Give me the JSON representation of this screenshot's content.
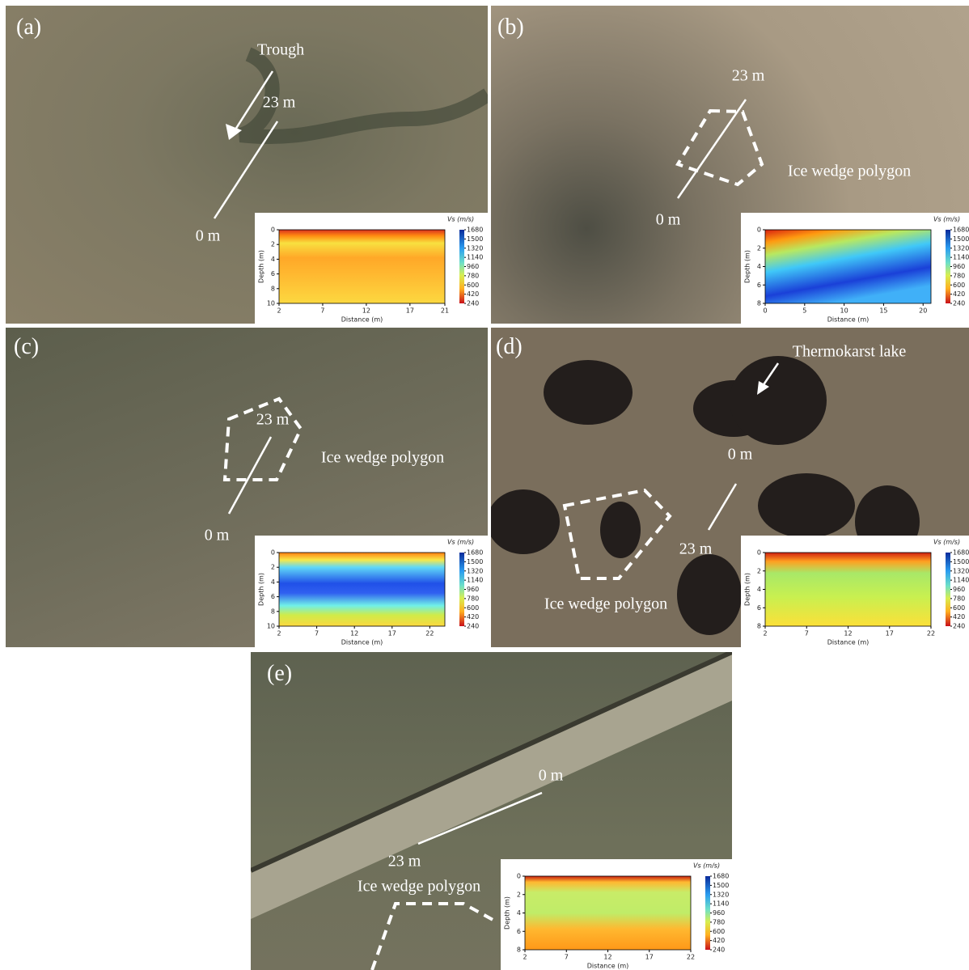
{
  "panels": [
    {
      "label": "(a)",
      "annotations": [
        "Trough",
        "23 m",
        "0 m"
      ],
      "inset": {
        "colorbar_title": "Vs (m/s)",
        "colorbar_ticks": [
          1680,
          1500,
          1320,
          1140,
          960,
          780,
          600,
          420,
          240
        ],
        "xlabel": "Distance (m)",
        "ylabel": "Depth (m)",
        "xlim": [
          2,
          21
        ],
        "xticks": [
          2,
          7,
          12,
          17,
          21
        ],
        "ylim": [
          0,
          10
        ],
        "yticks": [
          0,
          2,
          4,
          6,
          8,
          10
        ]
      }
    },
    {
      "label": "(b)",
      "annotations": [
        "23 m",
        "Ice wedge polygon",
        "0 m"
      ],
      "inset": {
        "colorbar_title": "Vs (m/s)",
        "colorbar_ticks": [
          1680,
          1500,
          1320,
          1140,
          960,
          780,
          600,
          420,
          240
        ],
        "xlabel": "Distance (m)",
        "ylabel": "Depth (m)",
        "xlim": [
          0,
          21
        ],
        "xticks": [
          0,
          5,
          10,
          15,
          20
        ],
        "ylim": [
          0,
          8
        ],
        "yticks": [
          0,
          2,
          4,
          6,
          8
        ]
      }
    },
    {
      "label": "(c)",
      "annotations": [
        "23 m",
        "Ice wedge polygon",
        "0 m"
      ],
      "inset": {
        "colorbar_title": "Vs (m/s)",
        "colorbar_ticks": [
          1680,
          1500,
          1320,
          1140,
          960,
          780,
          600,
          420,
          240
        ],
        "xlabel": "Distance (m)",
        "ylabel": "Depth (m)",
        "xlim": [
          2,
          24
        ],
        "xticks": [
          2,
          7,
          12,
          17,
          22
        ],
        "ylim": [
          0,
          10
        ],
        "yticks": [
          0,
          2,
          4,
          6,
          8,
          10
        ]
      }
    },
    {
      "label": "(d)",
      "annotations": [
        "Thermokarst lake",
        "0 m",
        "23 m",
        "Ice wedge polygon"
      ],
      "inset": {
        "colorbar_title": "Vs (m/s)",
        "colorbar_ticks": [
          1680,
          1500,
          1320,
          1140,
          960,
          780,
          600,
          420,
          240
        ],
        "xlabel": "Distance (m)",
        "ylabel": "Depth (m)",
        "xlim": [
          2,
          22
        ],
        "xticks": [
          2,
          7,
          12,
          17,
          22
        ],
        "ylim": [
          0,
          8
        ],
        "yticks": [
          0,
          2,
          4,
          6,
          8
        ]
      }
    },
    {
      "label": "(e)",
      "annotations": [
        "0 m",
        "23 m",
        "Ice wedge polygon"
      ],
      "inset": {
        "colorbar_title": "Vs (m/s)",
        "colorbar_ticks": [
          1680,
          1500,
          1320,
          1140,
          960,
          780,
          600,
          420,
          240
        ],
        "xlabel": "Distance (m)",
        "ylabel": "Depth (m)",
        "xlim": [
          2,
          22
        ],
        "xticks": [
          2,
          7,
          12,
          17,
          22
        ],
        "ylim": [
          0,
          8
        ],
        "yticks": [
          0,
          2,
          4,
          6,
          8
        ]
      }
    }
  ]
}
